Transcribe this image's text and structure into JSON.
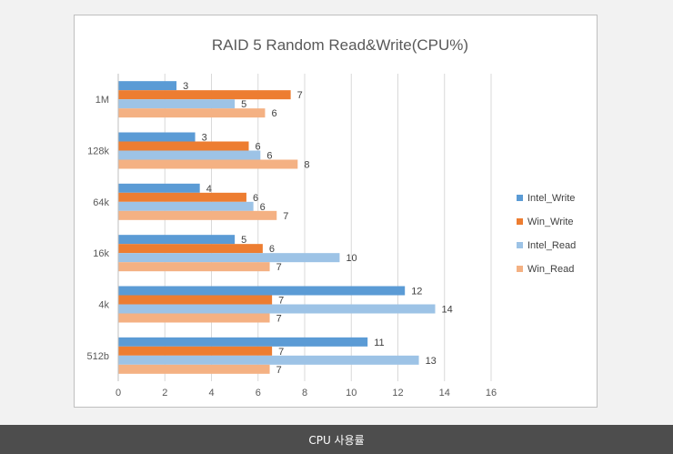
{
  "chart_data": {
    "type": "bar",
    "orientation": "horizontal",
    "title": "RAID 5 Random Read&Write(CPU%)",
    "xlabel": "",
    "ylabel": "",
    "categories": [
      "1M",
      "128k",
      "64k",
      "16k",
      "4k",
      "512b"
    ],
    "series": [
      {
        "name": "Intel_Write",
        "color": "#5b9bd5",
        "values": [
          2.5,
          3.3,
          3.5,
          5,
          12.3,
          10.7
        ],
        "labels": [
          "3",
          "3",
          "4",
          "5",
          "12",
          "11"
        ]
      },
      {
        "name": "Win_Write",
        "color": "#ed7d31",
        "values": [
          7.4,
          5.6,
          5.5,
          6.2,
          6.6,
          6.6
        ],
        "labels": [
          "7",
          "6",
          "6",
          "6",
          "7",
          "7"
        ]
      },
      {
        "name": "Intel_Read",
        "color": "#9dc3e6",
        "values": [
          5,
          6.1,
          5.8,
          9.5,
          13.6,
          12.9
        ],
        "labels": [
          "5",
          "6",
          "6",
          "10",
          "14",
          "13"
        ]
      },
      {
        "name": "Win_Read",
        "color": "#f4b183",
        "values": [
          6.3,
          7.7,
          6.8,
          6.5,
          6.5,
          6.5
        ],
        "labels": [
          "6",
          "8",
          "7",
          "7",
          "7",
          "7"
        ]
      }
    ],
    "xlim": [
      0,
      16
    ],
    "xticks": [
      0,
      2,
      4,
      6,
      8,
      10,
      12,
      14,
      16
    ],
    "grid": "vertical",
    "legend": "right"
  },
  "caption": "CPU 사용률"
}
